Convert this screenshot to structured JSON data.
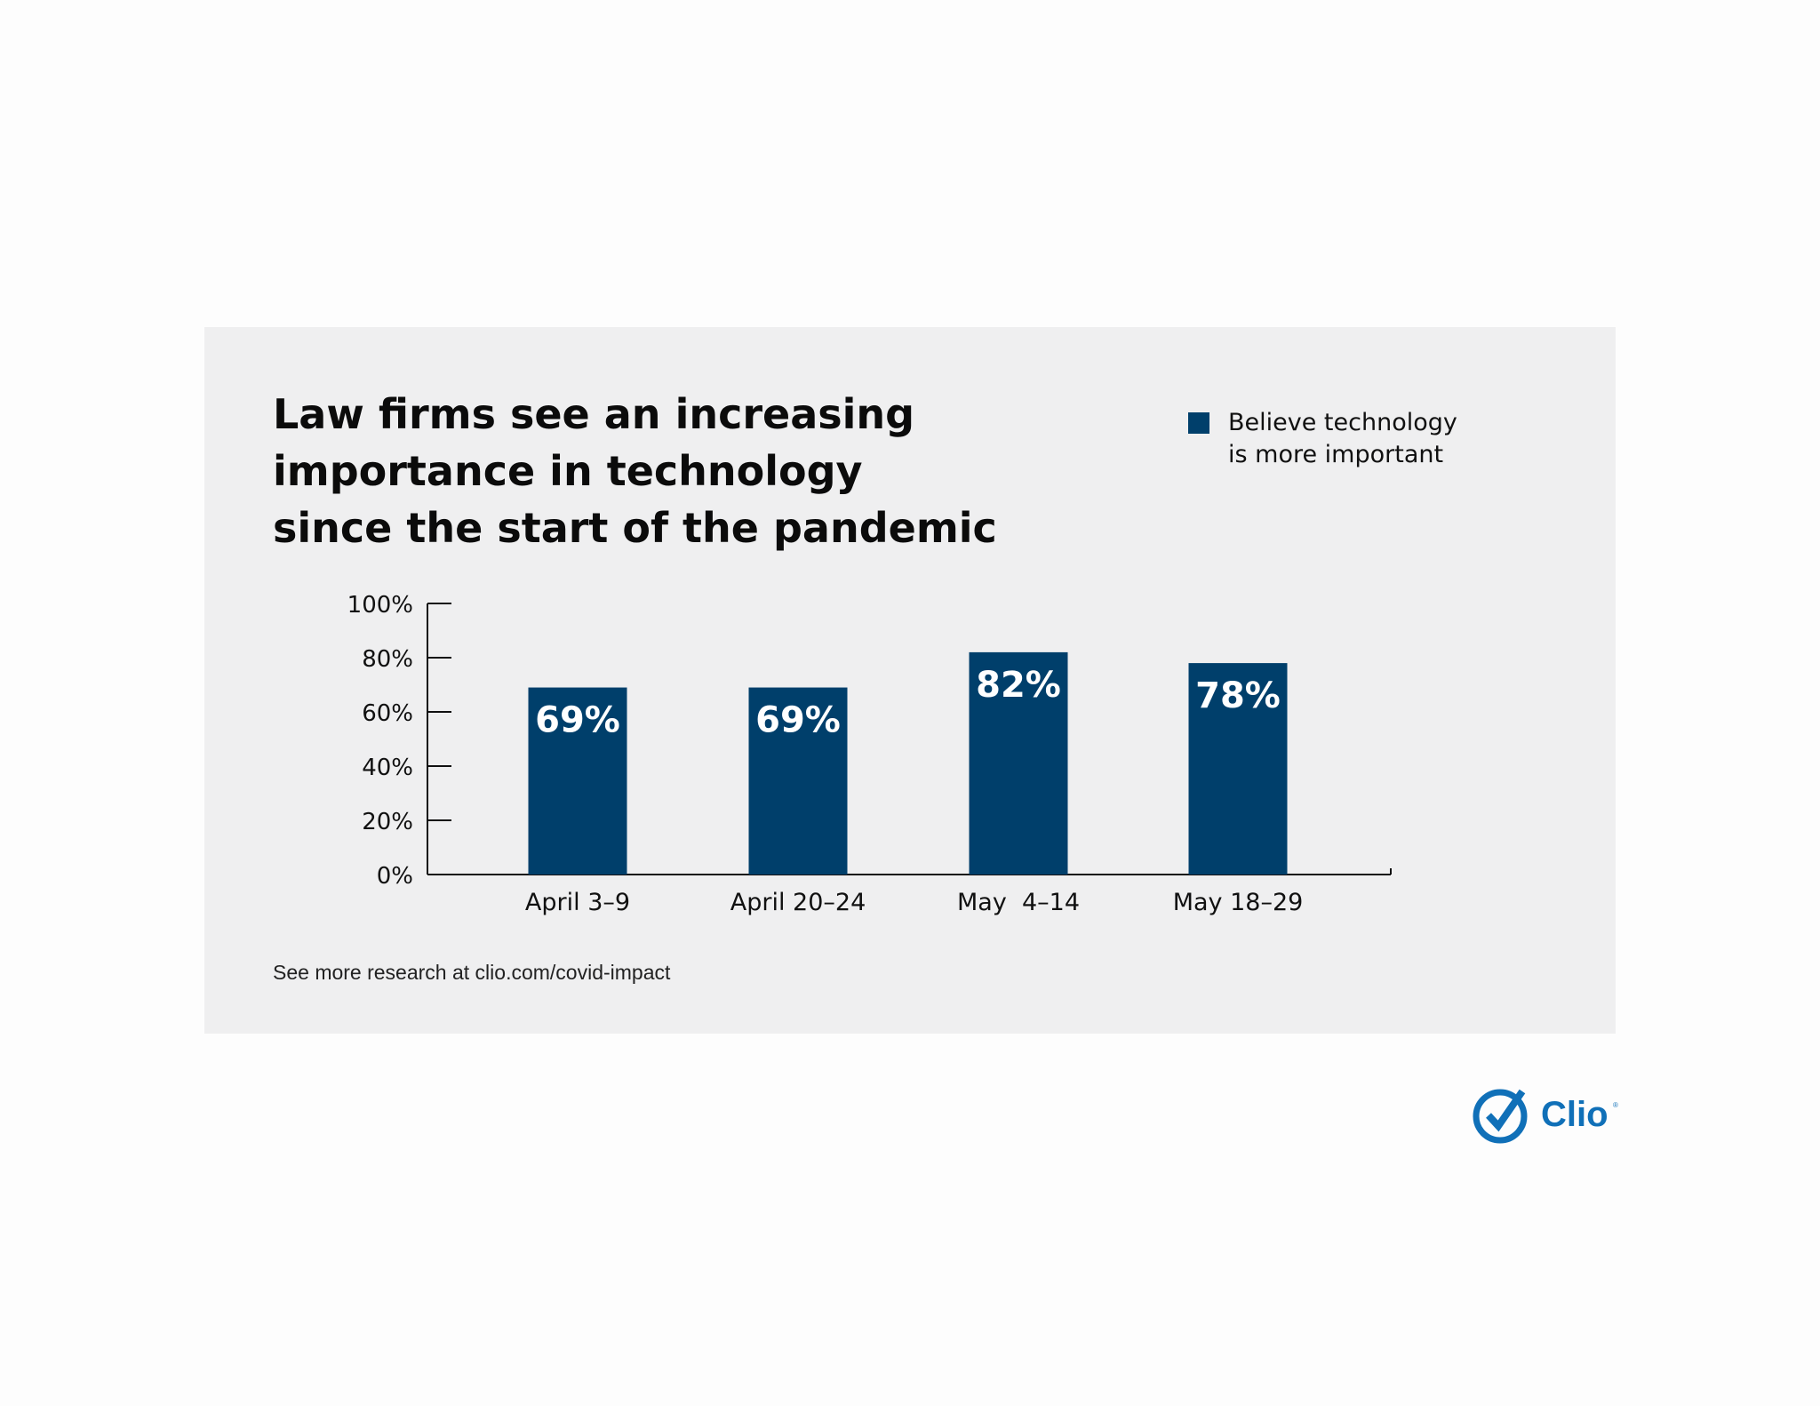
{
  "title_lines": [
    "Law firms see an increasing",
    "importance in technology",
    "since the start of the pandemic"
  ],
  "legend": {
    "lines": [
      "Believe technology",
      "is more important"
    ],
    "color": "#003f6b"
  },
  "footnote": "See more research at clio.com/covid-impact",
  "logo": {
    "text": "Clio",
    "mark": "®",
    "icon": "check-circle-icon",
    "color": "#1070b8"
  },
  "colors": {
    "bar": "#003f6b",
    "card_background": "#efeff0",
    "axis": "#111111",
    "label_text": "#ffffff"
  },
  "chart_data": {
    "type": "bar",
    "title": "Law firms see an increasing importance in technology since the start of the pandemic",
    "categories": [
      "April 3–9",
      "April 20–24",
      "May  4–14",
      "May 18–29"
    ],
    "series": [
      {
        "name": "Believe technology is more important",
        "values": [
          69,
          69,
          82,
          78
        ]
      }
    ],
    "data_labels": [
      "69%",
      "69%",
      "82%",
      "78%"
    ],
    "ylim": [
      0,
      100
    ],
    "yticks": [
      0,
      20,
      40,
      60,
      80,
      100
    ],
    "ytick_labels": [
      "0%",
      "20%",
      "40%",
      "60%",
      "80%",
      "100%"
    ],
    "xlabel": "",
    "ylabel": "",
    "grid": false,
    "legend_position": "top-right"
  }
}
